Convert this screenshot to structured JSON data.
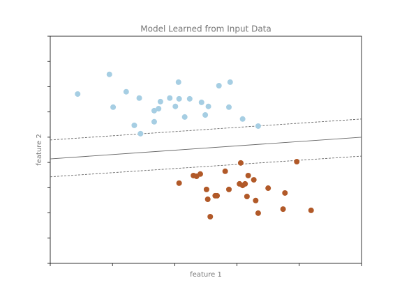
{
  "chart_data": {
    "type": "scatter",
    "title": "Model Learned from Input Data",
    "xlabel": "feature 1",
    "ylabel": "feature 2",
    "xlim": [
      0,
      5
    ],
    "ylim": [
      0,
      9
    ],
    "xticks": [
      0,
      1,
      2,
      3,
      4,
      5
    ],
    "yticks": [
      0,
      1,
      2,
      3,
      4,
      5,
      6,
      7,
      8,
      9
    ],
    "series": [
      {
        "color": "#a6cee3",
        "x": [
          0.44,
          0.95,
          1.01,
          1.22,
          1.35,
          1.43,
          1.45,
          1.67,
          1.67,
          1.74,
          1.77,
          1.92,
          2.01,
          2.06,
          2.07,
          2.16,
          2.24,
          2.43,
          2.49,
          2.54,
          2.71,
          2.87,
          2.89,
          3.09,
          3.34
        ],
        "y": [
          6.71,
          7.49,
          6.19,
          6.8,
          5.47,
          6.55,
          5.14,
          6.05,
          5.61,
          6.13,
          6.41,
          6.55,
          6.22,
          7.18,
          6.52,
          5.8,
          6.52,
          6.38,
          5.88,
          6.22,
          7.04,
          6.19,
          7.18,
          5.72,
          5.44
        ]
      },
      {
        "color": "#b15928",
        "x": [
          2.07,
          2.3,
          2.35,
          2.41,
          2.51,
          2.53,
          2.57,
          2.65,
          2.68,
          2.81,
          2.87,
          3.04,
          3.06,
          3.09,
          3.13,
          3.16,
          3.18,
          3.27,
          3.3,
          3.34,
          3.5,
          3.74,
          3.77,
          3.96,
          4.19
        ],
        "y": [
          3.18,
          3.48,
          3.45,
          3.54,
          2.93,
          2.54,
          1.85,
          2.68,
          2.68,
          3.65,
          2.93,
          3.15,
          3.98,
          3.09,
          3.15,
          2.65,
          3.48,
          3.31,
          2.49,
          1.99,
          2.98,
          2.15,
          2.79,
          4.03,
          2.1
        ]
      }
    ],
    "boundary": {
      "x": [
        0,
        5
      ],
      "y": [
        4.14,
        5.0
      ]
    },
    "margins": [
      {
        "x": [
          0,
          5
        ],
        "y": [
          4.89,
          5.72
        ]
      },
      {
        "x": [
          0,
          5
        ],
        "y": [
          3.43,
          4.25
        ]
      }
    ]
  }
}
